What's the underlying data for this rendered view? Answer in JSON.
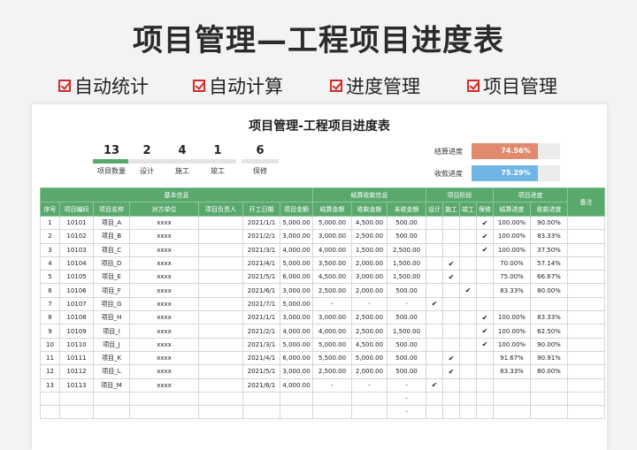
{
  "banner": {
    "title": "项目管理—工程项目进度表"
  },
  "features": [
    "自动统计",
    "自动计算",
    "进度管理",
    "项目管理"
  ],
  "sheet": {
    "title": "项目管理-工程项目进度表",
    "stats": [
      {
        "value": "13",
        "label": "项目数量"
      },
      {
        "value": "2",
        "label": "设计"
      },
      {
        "value": "4",
        "label": "施工"
      },
      {
        "value": "1",
        "label": "竣工"
      },
      {
        "value": "6",
        "label": "保修"
      }
    ],
    "progress": [
      {
        "label": "结算进度",
        "value": "74.56%",
        "fraction": 0.7456,
        "color": "#e08a70"
      },
      {
        "label": "收款进度",
        "value": "75.29%",
        "fraction": 0.7529,
        "color": "#6fb6e6"
      }
    ],
    "groups": {
      "basic": "基本信息",
      "settle": "结算收款信息",
      "stage": "项目阶段",
      "progress": "项目进度",
      "note": "备注"
    },
    "columns": [
      "序号",
      "项目编码",
      "项目名称",
      "对方单位",
      "项目负责人",
      "开工日期",
      "项目金额",
      "结算金额",
      "收款金额",
      "未收金额",
      "设计",
      "施工",
      "竣工",
      "保修",
      "结算进度",
      "收款进度"
    ],
    "rows": [
      [
        "1",
        "10101",
        "项目_A",
        "xxxx",
        "",
        "2021/1/1",
        "5,000.00",
        "5,000.00",
        "4,500.00",
        "500.00",
        "",
        "",
        "",
        "✔",
        "100.00%",
        "90.00%",
        ""
      ],
      [
        "2",
        "10102",
        "项目_B",
        "xxxx",
        "",
        "2021/2/1",
        "3,000.00",
        "3,000.00",
        "2,500.00",
        "500.00",
        "",
        "",
        "",
        "✔",
        "100.00%",
        "83.33%",
        ""
      ],
      [
        "3",
        "10103",
        "项目_C",
        "xxxx",
        "",
        "2021/3/1",
        "4,000.00",
        "4,000.00",
        "1,500.00",
        "2,500.00",
        "",
        "",
        "",
        "✔",
        "100.00%",
        "37.50%",
        ""
      ],
      [
        "4",
        "10104",
        "项目_D",
        "xxxx",
        "",
        "2021/4/1",
        "5,000.00",
        "3,500.00",
        "2,000.00",
        "1,500.00",
        "",
        "✔",
        "",
        "",
        "70.00%",
        "57.14%",
        ""
      ],
      [
        "5",
        "10105",
        "项目_E",
        "xxxx",
        "",
        "2021/5/1",
        "6,000.00",
        "4,500.00",
        "3,000.00",
        "1,500.00",
        "",
        "✔",
        "",
        "",
        "75.00%",
        "66.67%",
        ""
      ],
      [
        "6",
        "10106",
        "项目_F",
        "xxxx",
        "",
        "2021/6/1",
        "3,000.00",
        "2,500.00",
        "2,000.00",
        "500.00",
        "",
        "",
        "✔",
        "",
        "83.33%",
        "80.00%",
        ""
      ],
      [
        "7",
        "10107",
        "项目_G",
        "xxxx",
        "",
        "2021/7/1",
        "5,000.00",
        "-",
        "-",
        "-",
        "✔",
        "",
        "",
        "",
        "",
        "",
        ""
      ],
      [
        "8",
        "10108",
        "项目_H",
        "xxxx",
        "",
        "2021/1/1",
        "3,000.00",
        "3,000.00",
        "2,500.00",
        "500.00",
        "",
        "",
        "",
        "✔",
        "100.00%",
        "83.33%",
        ""
      ],
      [
        "9",
        "10109",
        "项目_I",
        "xxxx",
        "",
        "2021/2/1",
        "4,000.00",
        "4,000.00",
        "2,500.00",
        "1,500.00",
        "",
        "",
        "",
        "✔",
        "100.00%",
        "62.50%",
        ""
      ],
      [
        "10",
        "10110",
        "项目_J",
        "xxxx",
        "",
        "2021/3/1",
        "5,000.00",
        "5,000.00",
        "4,500.00",
        "500.00",
        "",
        "",
        "",
        "✔",
        "100.00%",
        "90.00%",
        ""
      ],
      [
        "11",
        "10111",
        "项目_K",
        "xxxx",
        "",
        "2021/4/1",
        "6,000.00",
        "5,500.00",
        "5,000.00",
        "500.00",
        "",
        "✔",
        "",
        "",
        "91.67%",
        "90.91%",
        ""
      ],
      [
        "12",
        "10112",
        "项目_L",
        "xxxx",
        "",
        "2021/5/1",
        "3,000.00",
        "2,500.00",
        "2,000.00",
        "500.00",
        "",
        "✔",
        "",
        "",
        "83.33%",
        "80.00%",
        ""
      ],
      [
        "13",
        "10113",
        "项目_M",
        "xxxx",
        "",
        "2021/6/1",
        "4,000.00",
        "-",
        "-",
        "-",
        "✔",
        "",
        "",
        "",
        "",
        "",
        ""
      ],
      [
        "",
        "",
        "",
        "",
        "",
        "",
        "",
        "",
        "",
        "-",
        "",
        "",
        "",
        "",
        "",
        "",
        ""
      ],
      [
        "",
        "",
        "",
        "",
        "",
        "",
        "",
        "",
        "",
        "-",
        "",
        "",
        "",
        "",
        "",
        "",
        ""
      ]
    ]
  }
}
